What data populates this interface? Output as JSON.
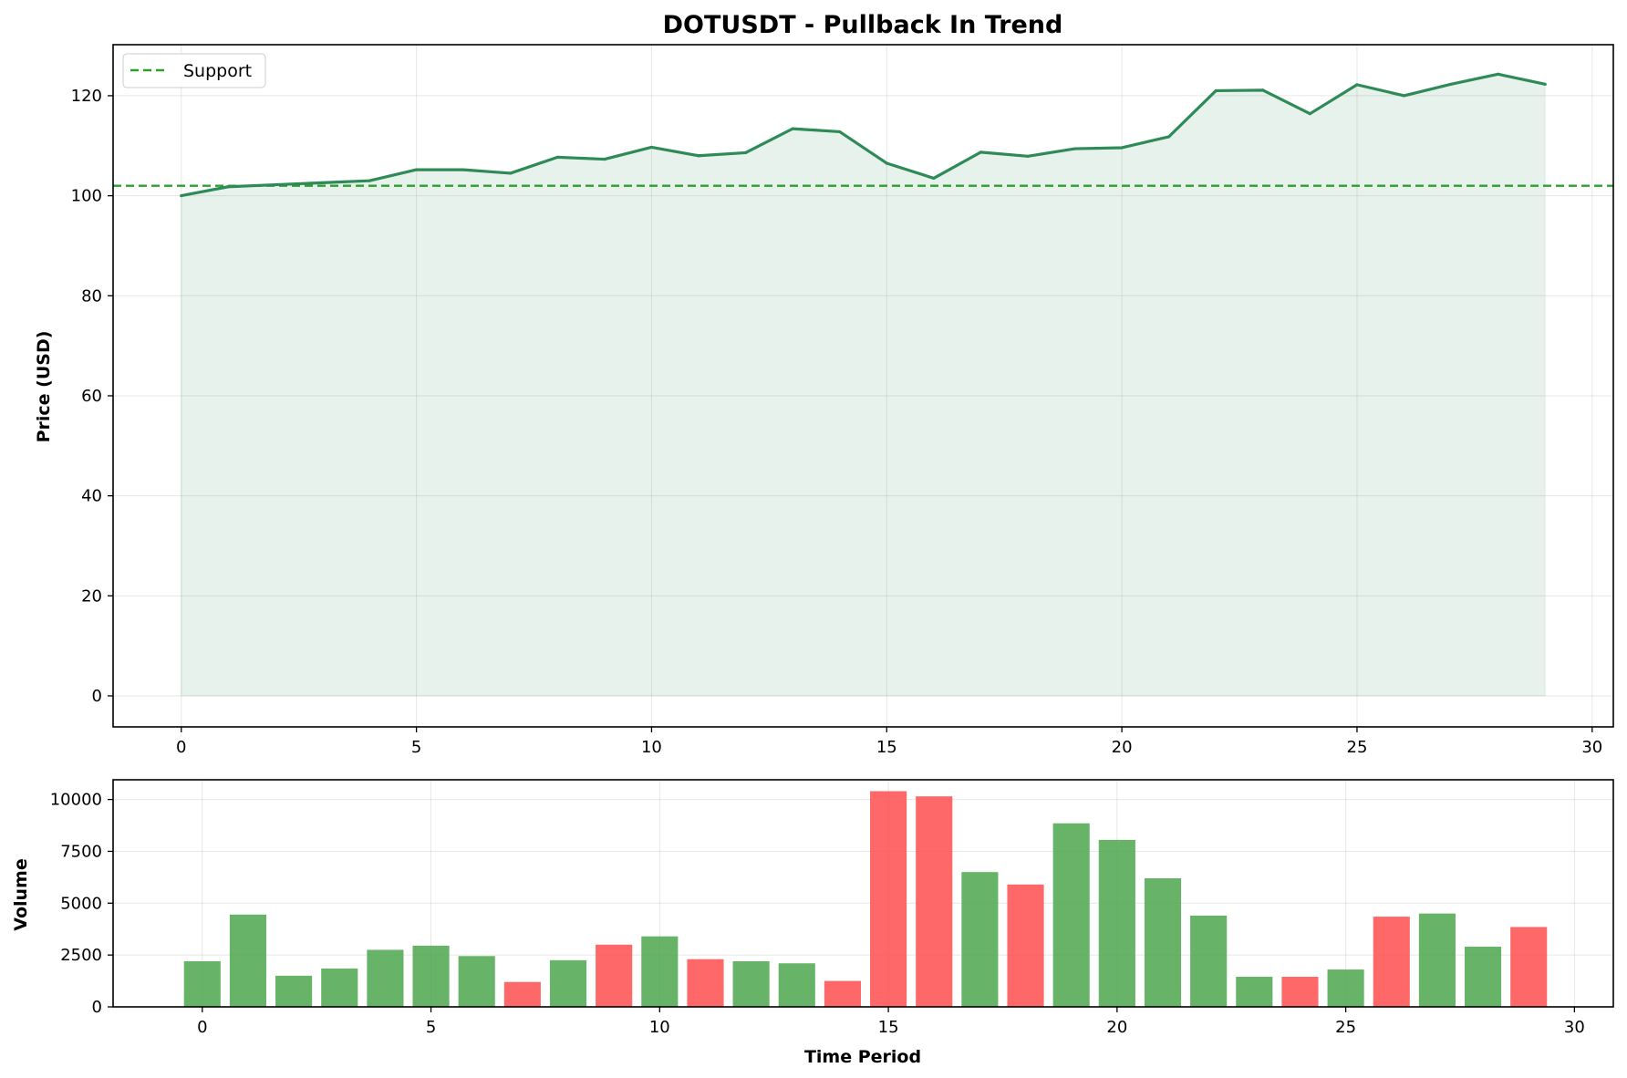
{
  "chart_data": [
    {
      "type": "line",
      "title": "DOTUSDT - Pullback In Trend",
      "xlabel": "",
      "ylabel": "Price (USD)",
      "xlim": [
        -1.45,
        30.45
      ],
      "ylim": [
        -6.2,
        130.2
      ],
      "xticks": [
        0,
        5,
        10,
        15,
        20,
        25,
        30
      ],
      "yticks": [
        0,
        20,
        40,
        60,
        80,
        100,
        120
      ],
      "x": [
        0,
        1,
        2,
        3,
        4,
        5,
        6,
        7,
        8,
        9,
        10,
        11,
        12,
        13,
        14,
        15,
        16,
        17,
        18,
        19,
        20,
        21,
        22,
        23,
        24,
        25,
        26,
        27,
        28,
        29
      ],
      "series": [
        {
          "name": "",
          "values": [
            100.0,
            101.8,
            102.2,
            102.6,
            103.0,
            105.2,
            105.2,
            104.5,
            107.7,
            107.3,
            109.7,
            108.0,
            108.6,
            113.4,
            112.8,
            106.5,
            103.5,
            108.7,
            107.9,
            109.4,
            109.6,
            111.8,
            121.0,
            121.1,
            116.4,
            122.2,
            120.0,
            122.3,
            124.3,
            122.3
          ],
          "color": "#2e8b57",
          "fill": true
        }
      ],
      "support": {
        "name": "Support",
        "value": 102.0,
        "color": "#2ca02c"
      },
      "grid": true,
      "legend": "top-left"
    },
    {
      "type": "bar",
      "title": "",
      "xlabel": "Time Period",
      "ylabel": "Volume",
      "xlim": [
        -1.95,
        30.85
      ],
      "ylim": [
        0,
        10950
      ],
      "xticks": [
        0,
        5,
        10,
        15,
        20,
        25,
        30
      ],
      "yticks": [
        0,
        2500,
        5000,
        7500,
        10000
      ],
      "x": [
        0,
        1,
        2,
        3,
        4,
        5,
        6,
        7,
        8,
        9,
        10,
        11,
        12,
        13,
        14,
        15,
        16,
        17,
        18,
        19,
        20,
        21,
        22,
        23,
        24,
        25,
        26,
        27,
        28,
        29
      ],
      "values": [
        2200,
        4450,
        1500,
        1850,
        2750,
        2950,
        2450,
        1200,
        2250,
        3000,
        3400,
        2300,
        2200,
        2100,
        1250,
        10400,
        10150,
        6500,
        5900,
        8850,
        8050,
        6200,
        4400,
        1450,
        1450,
        1800,
        4350,
        4500,
        2900,
        3850
      ],
      "bar_colors": [
        "up",
        "up",
        "up",
        "up",
        "up",
        "up",
        "up",
        "down",
        "up",
        "down",
        "up",
        "down",
        "up",
        "up",
        "down",
        "down",
        "down",
        "up",
        "down",
        "up",
        "up",
        "up",
        "up",
        "up",
        "down",
        "up",
        "down",
        "up",
        "up",
        "down"
      ],
      "colors": {
        "up": "#4ca64c",
        "down": "#ff4d4d"
      },
      "grid": true
    }
  ]
}
